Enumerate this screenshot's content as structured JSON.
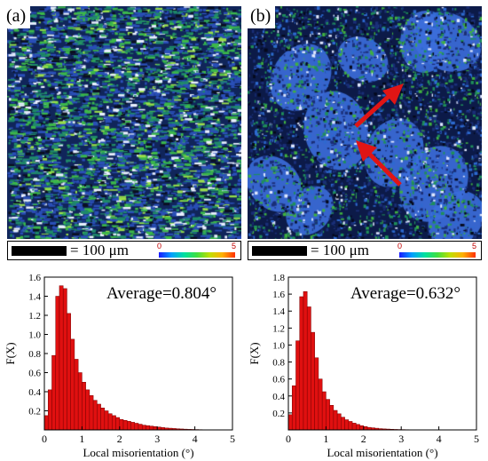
{
  "panels": [
    {
      "tag": "(a)",
      "scale_text": "= 100 μm",
      "colorbar_min": "0",
      "colorbar_max": "5"
    },
    {
      "tag": "(b)",
      "scale_text": "= 100 μm",
      "colorbar_min": "0",
      "colorbar_max": "5"
    }
  ],
  "colors": {
    "bar_fill": "#e01010",
    "bar_edge": "#7a0000",
    "arrow": "#e01515"
  },
  "chart_data": [
    {
      "type": "bar",
      "annotation": "Average=0.804°",
      "xlabel": "Local misorientation (°)",
      "ylabel": "F(X)",
      "xlim": [
        0,
        5
      ],
      "ylim": [
        0,
        1.6
      ],
      "xticks": [
        "0",
        "1",
        "2",
        "3",
        "4",
        "5"
      ],
      "yticks": [
        "0.2",
        "0.4",
        "0.6",
        "0.8",
        "1.0",
        "1.2",
        "1.4",
        "1.6"
      ],
      "bin_width": 0.1,
      "values": [
        0.15,
        0.42,
        0.78,
        1.4,
        1.51,
        1.48,
        1.22,
        0.95,
        0.74,
        0.6,
        0.5,
        0.42,
        0.36,
        0.31,
        0.27,
        0.23,
        0.2,
        0.17,
        0.15,
        0.13,
        0.11,
        0.1,
        0.09,
        0.08,
        0.07,
        0.06,
        0.05,
        0.045,
        0.04,
        0.035,
        0.03,
        0.025,
        0.02,
        0.018,
        0.015,
        0.012,
        0.01,
        0.008,
        0.006,
        0.005,
        0.004,
        0.003,
        0.002,
        0.002,
        0.001,
        0.001,
        0.001,
        0.001,
        0.001,
        0.001
      ]
    },
    {
      "type": "bar",
      "annotation": "Average=0.632°",
      "xlabel": "Local misorientation (°)",
      "ylabel": "F(X)",
      "xlim": [
        0,
        5
      ],
      "ylim": [
        0,
        1.8
      ],
      "xticks": [
        "0",
        "1",
        "2",
        "3",
        "4",
        "5"
      ],
      "yticks": [
        "0.2",
        "0.4",
        "0.6",
        "0.8",
        "1.0",
        "1.2",
        "1.4",
        "1.6",
        "1.8"
      ],
      "bin_width": 0.1,
      "values": [
        0.18,
        0.52,
        1.05,
        1.57,
        1.63,
        1.45,
        1.15,
        0.85,
        0.6,
        0.45,
        0.36,
        0.29,
        0.23,
        0.19,
        0.15,
        0.12,
        0.1,
        0.08,
        0.065,
        0.05,
        0.04,
        0.03,
        0.025,
        0.02,
        0.015,
        0.012,
        0.01,
        0.008,
        0.006,
        0.005,
        0.004,
        0.003,
        0.002,
        0.002,
        0.001,
        0.001,
        0.001,
        0.001,
        0.001,
        0.0,
        0.0,
        0.0,
        0.0,
        0.0,
        0.0,
        0.0,
        0.0,
        0.0,
        0.0,
        0.0
      ]
    }
  ]
}
